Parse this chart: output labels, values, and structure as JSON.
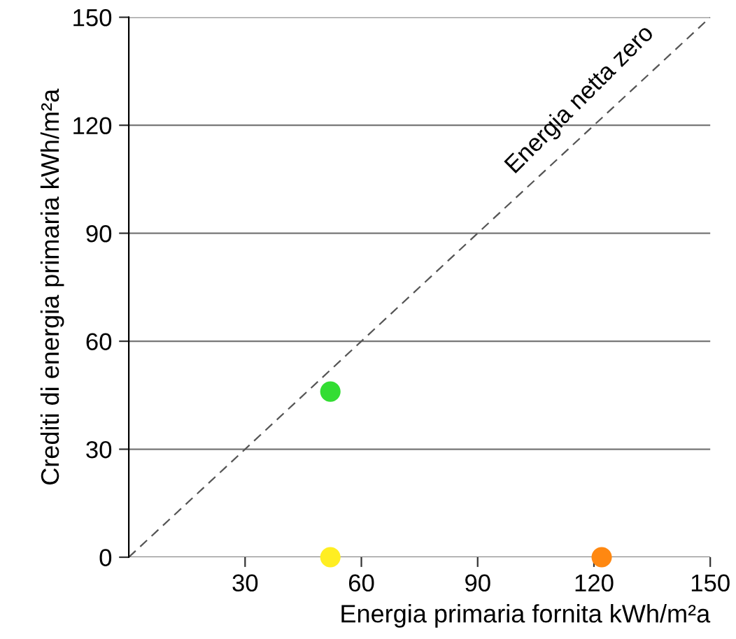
{
  "chart_data": {
    "type": "scatter",
    "xlabel": "Energia primaria fornita kWh/m²a",
    "ylabel": "Crediti di energia primaria kWh/m²a",
    "xlim": [
      0,
      150
    ],
    "ylim": [
      0,
      150
    ],
    "xticks": [
      30,
      60,
      90,
      120,
      150
    ],
    "yticks": [
      0,
      30,
      60,
      90,
      120,
      150
    ],
    "grid": "y",
    "marker": "circle",
    "series": [
      {
        "type": "line",
        "name": "Energia netta zero",
        "color": "#555555",
        "line_style": "dashed",
        "marker": "none",
        "x": [
          0,
          150
        ],
        "values": [
          0,
          150
        ]
      },
      {
        "x": [
          52,
          52,
          122
        ],
        "values": [
          46,
          0,
          0
        ],
        "colors": [
          "#33dd33",
          "#ffee22",
          "#ff8811"
        ]
      }
    ]
  }
}
